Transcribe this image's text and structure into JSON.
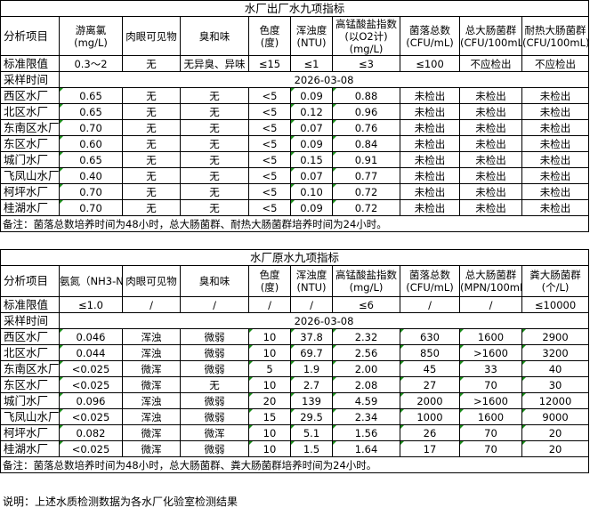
{
  "table1": {
    "title": "水厂出厂水九项指标",
    "headers": [
      "分析项目",
      "游离氯\n(mg/L)",
      "肉眼可见物",
      "臭和味",
      "色度\n(度)",
      "浑浊度\n(NTU)",
      "高锰酸盐指数\n(以O2计)\n(mg/L)",
      "菌落总数\n(CFU/mL)",
      "总大肠菌群\n(CFU/100mL)",
      "耐热大肠菌群\n(CFU/100mL)"
    ],
    "standard": [
      "标准限值",
      "0.3～2",
      "无",
      "无异臭、异味",
      "≤15",
      "≤1",
      "≤3",
      "≤100",
      "不应检出",
      "不应检出"
    ],
    "sample_label": "采样时间",
    "sample_date": "2026-03-08",
    "rows": [
      [
        "西区水厂",
        "0.65",
        "无",
        "无",
        "<5",
        "0.09",
        "0.88",
        "未检出",
        "未检出",
        "未检出"
      ],
      [
        "北区水厂",
        "0.65",
        "无",
        "无",
        "<5",
        "0.12",
        "0.96",
        "未检出",
        "未检出",
        "未检出"
      ],
      [
        "东南区水厂",
        "0.70",
        "无",
        "无",
        "<5",
        "0.07",
        "0.76",
        "未检出",
        "未检出",
        "未检出"
      ],
      [
        "东区水厂",
        "0.60",
        "无",
        "无",
        "<5",
        "0.09",
        "0.84",
        "未检出",
        "未检出",
        "未检出"
      ],
      [
        "城门水厂",
        "0.65",
        "无",
        "无",
        "<5",
        "0.15",
        "0.91",
        "未检出",
        "未检出",
        "未检出"
      ],
      [
        "飞凤山水厂",
        "0.40",
        "无",
        "无",
        "<5",
        "0.07",
        "0.77",
        "未检出",
        "未检出",
        "未检出"
      ],
      [
        "柯坪水厂",
        "0.70",
        "无",
        "无",
        "<5",
        "0.10",
        "0.72",
        "未检出",
        "未检出",
        "未检出"
      ],
      [
        "桂湖水厂",
        "0.70",
        "无",
        "无",
        "<5",
        "0.09",
        "0.72",
        "未检出",
        "未检出",
        "未检出"
      ]
    ],
    "note": "备注：菌落总数培养时间为48小时，总大肠菌群、耐热大肠菌群培养时间为24小时。"
  },
  "table2": {
    "title": "水厂原水九项指标",
    "headers": [
      "分析项目",
      "氨氮（NH3-N）（mg/L）",
      "肉眼可见物",
      "臭和味",
      "色度\n(度)",
      "浑浊度\n(NTU)",
      "高锰酸盐指数\n(mg/L)",
      "菌落总数\n(CFU/mL)",
      "总大肠菌群\n(MPN/100mL)",
      "粪大肠菌群\n(个/L)"
    ],
    "standard": [
      "标准限值",
      "≤1.0",
      "/",
      "/",
      "/",
      "/",
      "≤6",
      "/",
      "/",
      "≤10000"
    ],
    "sample_label": "采样时间",
    "sample_date": "2026-03-08",
    "rows": [
      [
        "西区水厂",
        "0.046",
        "浑浊",
        "微弱",
        "10",
        "37.8",
        "2.32",
        "630",
        "1600",
        "2900"
      ],
      [
        "北区水厂",
        "0.044",
        "浑浊",
        "微弱",
        "10",
        "69.7",
        "2.56",
        "850",
        ">1600",
        "3200"
      ],
      [
        "东南区水厂",
        "<0.025",
        "微浑",
        "微弱",
        "5",
        "1.9",
        "2.00",
        "45",
        "33",
        "40"
      ],
      [
        "东区水厂",
        "<0.025",
        "微浑",
        "无",
        "10",
        "2.7",
        "2.08",
        "27",
        "70",
        "30"
      ],
      [
        "城门水厂",
        "0.096",
        "浑浊",
        "微弱",
        "20",
        "139",
        "4.59",
        "2000",
        ">1600",
        "12000"
      ],
      [
        "飞凤山水厂",
        "<0.025",
        "浑浊",
        "微弱",
        "15",
        "29.5",
        "2.34",
        "1000",
        "1600",
        "9000"
      ],
      [
        "柯坪水厂",
        "0.082",
        "微浑",
        "微浑",
        "10",
        "5.1",
        "1.56",
        "26",
        "70",
        "20"
      ],
      [
        "桂湖水厂",
        "<0.025",
        "微浑",
        "微弱",
        "10",
        "1.5",
        "1.64",
        "17",
        "70",
        "20"
      ]
    ],
    "note": "备注：菌落总数培养时间为48小时，总大肠菌群、粪大肠菌群培养时间为24小时。"
  },
  "explanation": "说明：上述水质检测数据为各水厂化验室检测结果"
}
